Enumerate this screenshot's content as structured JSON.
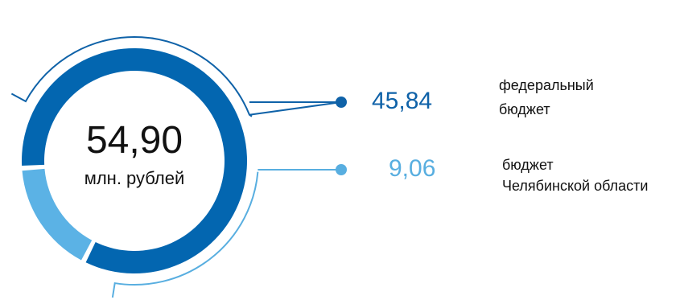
{
  "chart_data": {
    "type": "pie",
    "total": {
      "value": "54,90",
      "unit": "млн. рублей"
    },
    "slices": [
      {
        "label_lines": [
          "федеральный",
          "бюджет"
        ],
        "value": 45.84,
        "value_text": "45,84",
        "color": "#0366b0",
        "pointer_color": "#0f62a8"
      },
      {
        "label_lines": [
          "бюджет",
          "Челябинской области"
        ],
        "value": 9.06,
        "value_text": "9,06",
        "color": "#5bb2e5",
        "pointer_color": "#58aee0"
      }
    ],
    "legend_position": "right"
  }
}
